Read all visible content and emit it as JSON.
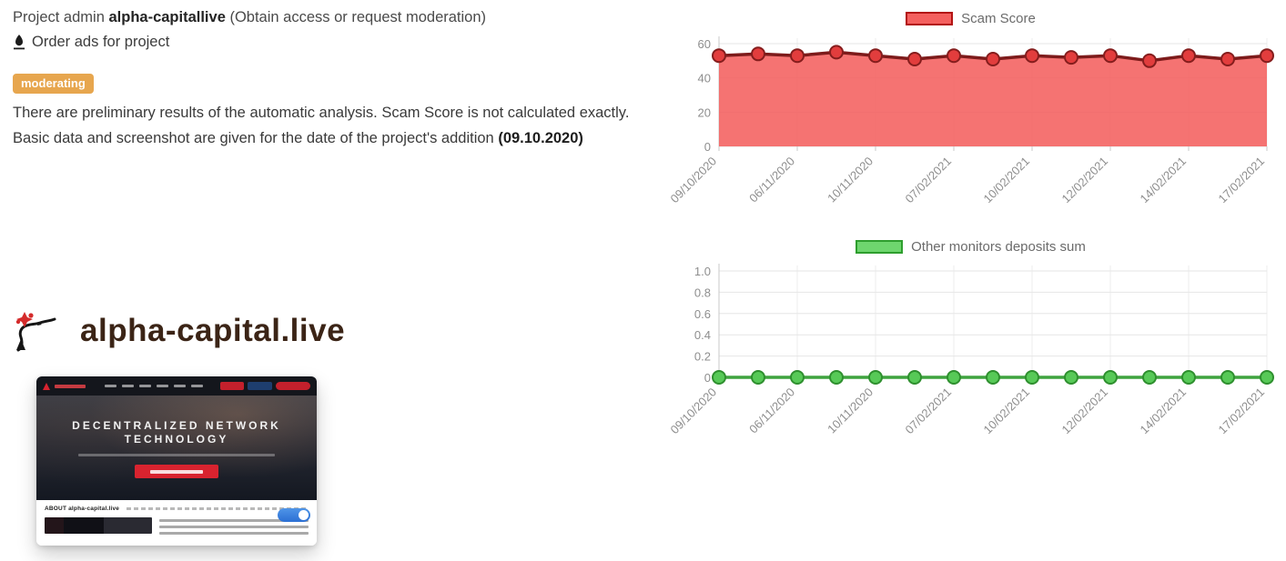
{
  "header": {
    "project_admin_prefix": "Project admin",
    "project_admin_name": "alpha-capitallive",
    "project_admin_suffix": "(Obtain access or request moderation)",
    "order_ads_label": "Order ads for project",
    "status_badge": "moderating",
    "analysis_note": "There are preliminary results of the automatic analysis. Scam Score is not calculated exactly.  Basic data and screenshot are given for the date of the project's addition",
    "addition_date": "(09.10.2020)"
  },
  "project": {
    "title": "alpha-capital.live",
    "thumbnail": {
      "hero_title_line1": "DECENTRALIZED NETWORK",
      "hero_title_line2": "TECHNOLOGY",
      "about_heading": "ABOUT alpha-capital.live"
    }
  },
  "colors": {
    "badge_orange": "#e7a64e",
    "title_brown": "#3b2416",
    "scam_red": "#f4605f",
    "deposits_green": "#57c957"
  },
  "chart_data": [
    {
      "type": "area",
      "title": "Scam Score",
      "legend": "Scam Score",
      "legend_position": "top",
      "x_tick_labels": [
        "09/10/2020",
        "06/11/2020",
        "10/11/2020",
        "07/02/2021",
        "10/02/2021",
        "12/02/2021",
        "14/02/2021",
        "17/02/2021"
      ],
      "x_tick_indices": [
        0,
        2,
        4,
        6,
        8,
        10,
        12,
        14
      ],
      "num_points": 15,
      "values": [
        53,
        54,
        53,
        55,
        53,
        51,
        53,
        51,
        53,
        52,
        53,
        50,
        53,
        51,
        53
      ],
      "ylim": [
        0,
        60
      ],
      "y_ticks": [
        0,
        20,
        40,
        60
      ],
      "y_tick_labels": [
        "0",
        "20",
        "40",
        "60"
      ],
      "grid": true,
      "colors": {
        "fill": "#f4605f",
        "line": "#7d1b1b",
        "marker_fill": "#e23d3d",
        "marker_stroke": "#851d1d",
        "legend_fill": "#f4605f",
        "legend_border": "#b31212"
      }
    },
    {
      "type": "line",
      "title": "Other monitors deposits sum",
      "legend": "Other monitors deposits sum",
      "legend_position": "top",
      "x_tick_labels": [
        "09/10/2020",
        "06/11/2020",
        "10/11/2020",
        "07/02/2021",
        "10/02/2021",
        "12/02/2021",
        "14/02/2021",
        "17/02/2021"
      ],
      "x_tick_indices": [
        0,
        2,
        4,
        6,
        8,
        10,
        12,
        14
      ],
      "num_points": 15,
      "values": [
        0,
        0,
        0,
        0,
        0,
        0,
        0,
        0,
        0,
        0,
        0,
        0,
        0,
        0,
        0
      ],
      "ylim": [
        0,
        1
      ],
      "y_ticks": [
        0,
        0.2,
        0.4,
        0.6,
        0.8,
        1.0
      ],
      "y_tick_labels": [
        "0",
        "0.2",
        "0.4",
        "0.6",
        "0.8",
        "1.0"
      ],
      "grid": true,
      "colors": {
        "line": "#3fa33f",
        "marker_fill": "#57c957",
        "marker_stroke": "#2e8f2e",
        "legend_fill": "#6ed66e",
        "legend_border": "#2e9e2e"
      }
    }
  ]
}
